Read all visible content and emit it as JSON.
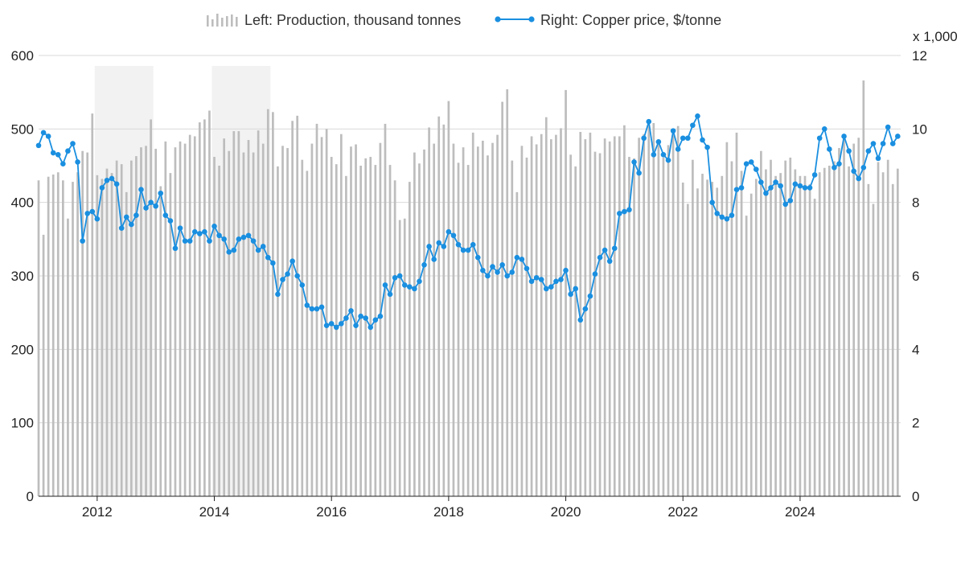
{
  "chart_data": {
    "type": "bar+line",
    "legend": {
      "placement": "top-center",
      "bars_label": "Left: Production, thousand tonnes",
      "line_label": "Right: Copper price, $/tonne"
    },
    "colors": {
      "bars": "#bdbdbd",
      "line": "#1a8fe0",
      "shade": "#f2f2f2",
      "grid": "#d9d9d9",
      "axis": "#222222"
    },
    "x_axis": {
      "ticks": [
        "2012",
        "2014",
        "2016",
        "2018",
        "2020",
        "2022",
        "2024"
      ],
      "range": [
        "2011-01",
        "2025-09"
      ]
    },
    "left_axis": {
      "ticks": [
        "0",
        "100",
        "200",
        "300",
        "400",
        "500",
        "600"
      ],
      "range": [
        0,
        600
      ]
    },
    "right_axis": {
      "ticks": [
        "0",
        "2",
        "4",
        "6",
        "8",
        "10",
        "12"
      ],
      "range": [
        0,
        12000
      ],
      "multiplier_label": "x 1,000"
    },
    "grid": true,
    "shaded_periods": [
      {
        "start": "2012-01",
        "end": "2012-12"
      },
      {
        "start": "2014-01",
        "end": "2014-12"
      }
    ],
    "series": [
      {
        "name": "Left: Production, thousand tonnes",
        "axis": "left",
        "start": "2011-01",
        "frequency": "monthly",
        "values": [
          430,
          356,
          435,
          438,
          441,
          430,
          378,
          428,
          441,
          470,
          468,
          521,
          437,
          432,
          446,
          440,
          457,
          452,
          414,
          457,
          463,
          475,
          477,
          513,
          473,
          422,
          483,
          440,
          475,
          483,
          480,
          492,
          490,
          509,
          513,
          525,
          462,
          450,
          487,
          470,
          497,
          497,
          468,
          485,
          468,
          498,
          480,
          527,
          523,
          449,
          477,
          474,
          511,
          518,
          458,
          443,
          480,
          507,
          489,
          500,
          462,
          452,
          493,
          436,
          476,
          479,
          450,
          460,
          462,
          451,
          481,
          507,
          451,
          430,
          376,
          378,
          428,
          468,
          453,
          472,
          502,
          480,
          517,
          506,
          538,
          480,
          454,
          475,
          451,
          495,
          476,
          484,
          464,
          481,
          492,
          537,
          554,
          457,
          414,
          477,
          461,
          490,
          479,
          493,
          516,
          486,
          492,
          501,
          553,
          465,
          449,
          496,
          486,
          495,
          469,
          467,
          487,
          483,
          490,
          490,
          505,
          462,
          460,
          488,
          493,
          506,
          508,
          483,
          461,
          478,
          492,
          504,
          427,
          398,
          458,
          419,
          439,
          431,
          428,
          420,
          436,
          482,
          456,
          495,
          443,
          382,
          412,
          432,
          470,
          445,
          458,
          436,
          440,
          457,
          461,
          445,
          436,
          436,
          425,
          405,
          441,
          447,
          450,
          456,
          474,
          490,
          449,
          480,
          488,
          566,
          425,
          398,
          455,
          441,
          458,
          425,
          446
        ]
      },
      {
        "name": "Right: Copper price, $/tonne",
        "axis": "right",
        "start": "2011-01",
        "frequency": "monthly",
        "values": [
          9550,
          9900,
          9800,
          9350,
          9300,
          9050,
          9400,
          9600,
          9100,
          6950,
          7700,
          7750,
          7550,
          8400,
          8600,
          8650,
          8500,
          7300,
          7600,
          7400,
          7650,
          8350,
          7850,
          8000,
          7900,
          8250,
          7650,
          7500,
          6750,
          7300,
          6950,
          6950,
          7200,
          7150,
          7200,
          6950,
          7350,
          7100,
          7000,
          6650,
          6700,
          7000,
          7050,
          7100,
          6950,
          6700,
          6800,
          6500,
          6350,
          5500,
          5900,
          6050,
          6400,
          6000,
          5750,
          5200,
          5100,
          5100,
          5150,
          4650,
          4700,
          4600,
          4700,
          4850,
          5050,
          4650,
          4900,
          4850,
          4600,
          4800,
          4900,
          5750,
          5500,
          5950,
          6000,
          5750,
          5700,
          5650,
          5850,
          6300,
          6800,
          6450,
          6900,
          6800,
          7200,
          7100,
          6850,
          6700,
          6700,
          6850,
          6500,
          6150,
          6000,
          6250,
          6100,
          6300,
          6000,
          6100,
          6500,
          6450,
          6200,
          5850,
          5950,
          5900,
          5650,
          5700,
          5850,
          5900,
          6150,
          5500,
          5650,
          4800,
          5100,
          5450,
          6050,
          6500,
          6700,
          6400,
          6750,
          7700,
          7750,
          7800,
          9100,
          8800,
          9750,
          10200,
          9300,
          9650,
          9300,
          9150,
          9950,
          9450,
          9750,
          9750,
          10100,
          10350,
          9700,
          9500,
          8000,
          7700,
          7600,
          7550,
          7650,
          8350,
          8400,
          9050,
          9100,
          8900,
          8550,
          8250,
          8400,
          8550,
          8450,
          7950,
          8050,
          8500,
          8450,
          8400,
          8400,
          8750,
          9750,
          10000,
          9450,
          8950,
          9050,
          9800,
          9400,
          8850,
          8650,
          8950,
          9400,
          9600,
          9200,
          9600,
          10050,
          9600,
          9800
        ]
      }
    ]
  }
}
